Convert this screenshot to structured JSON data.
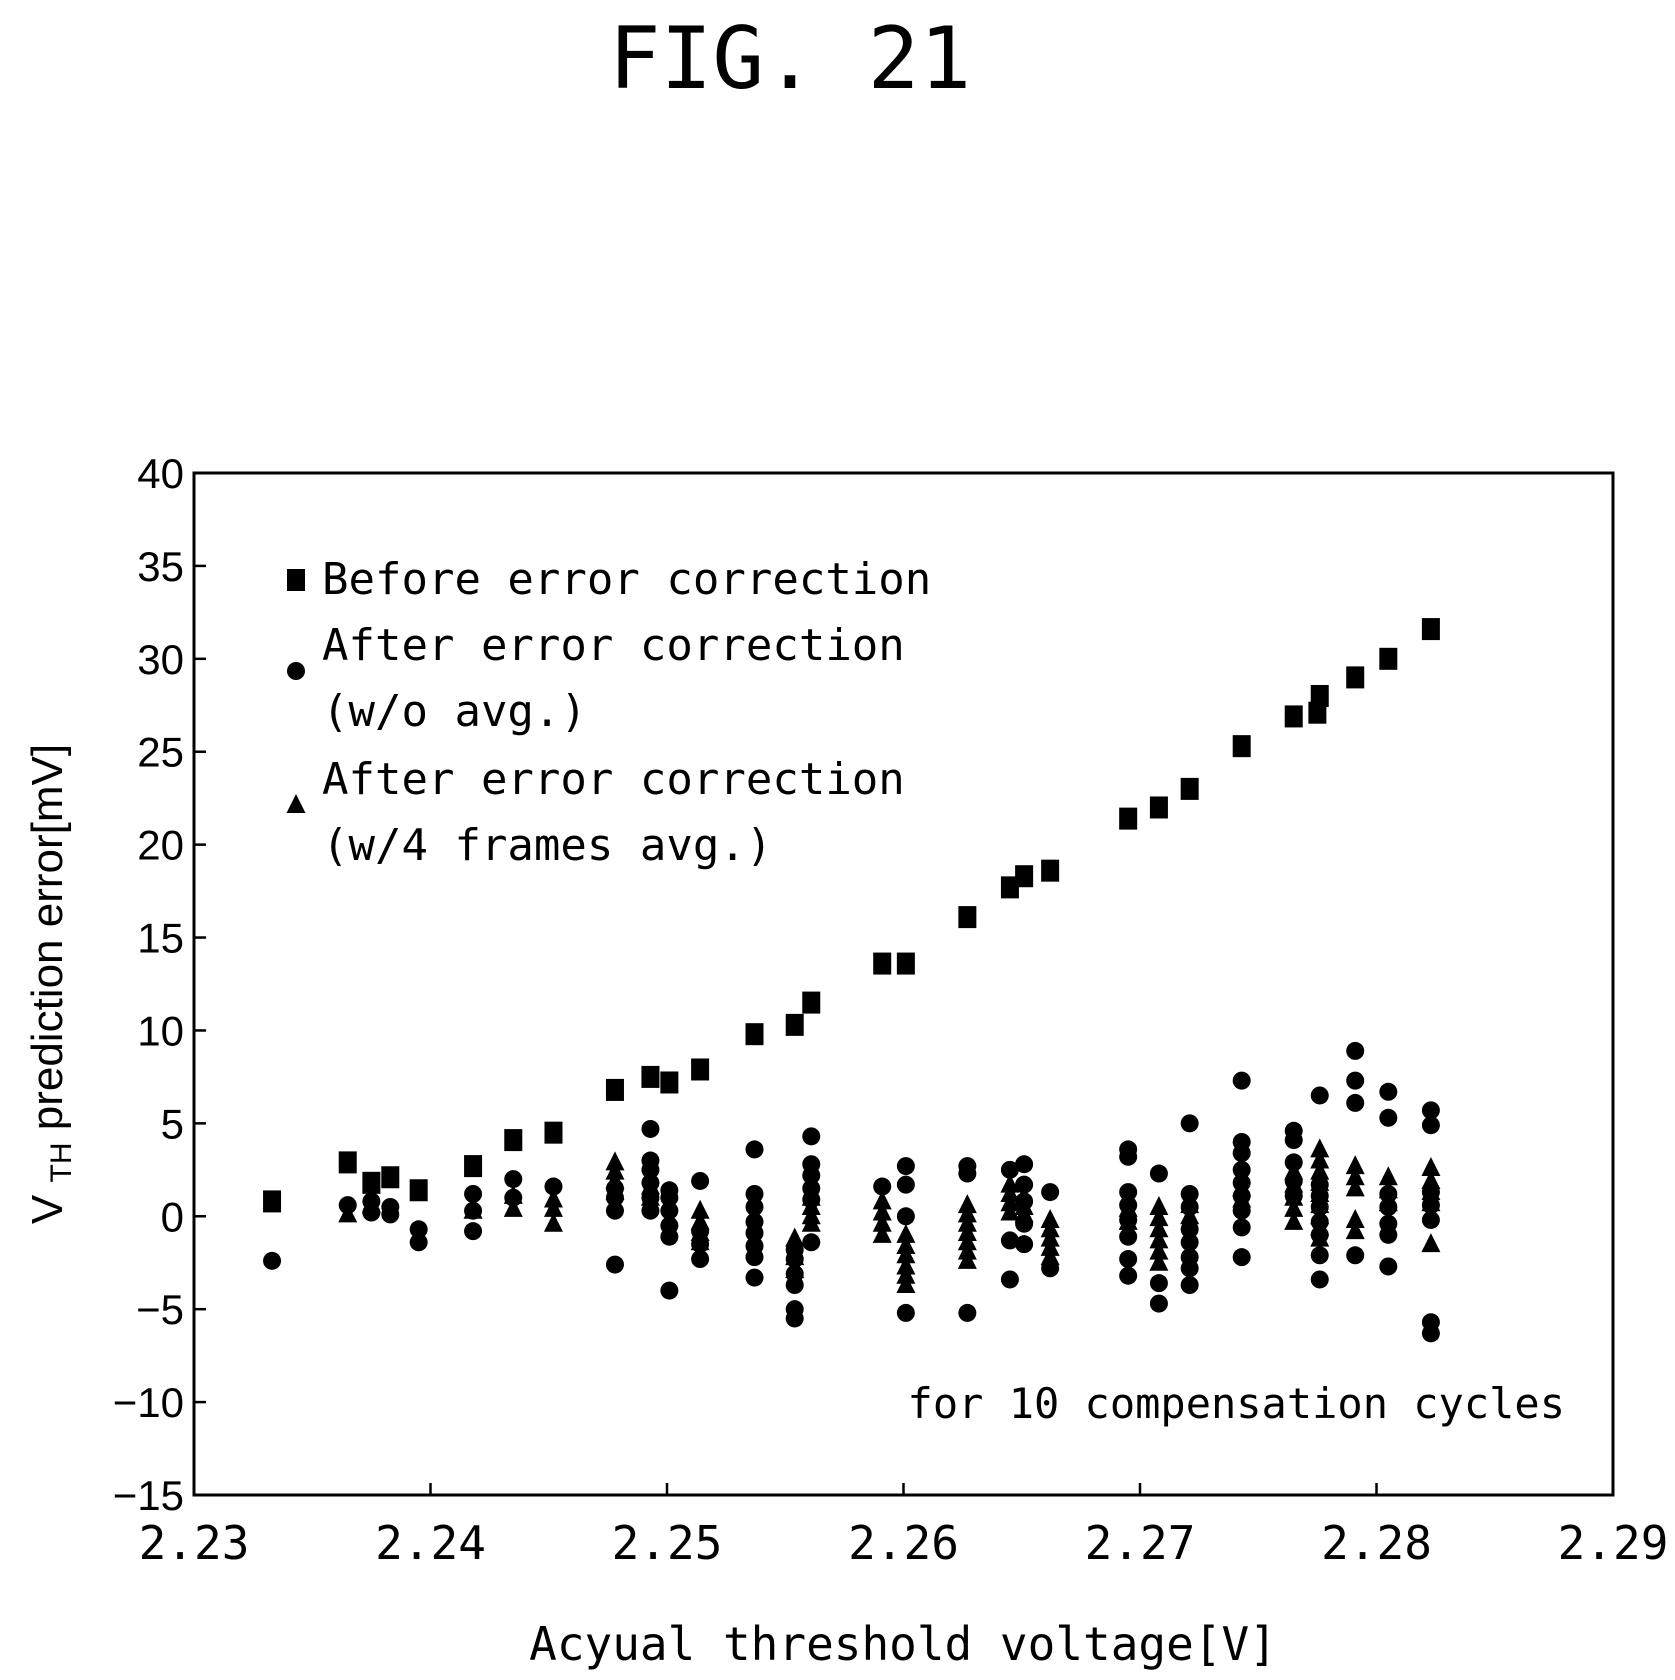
{
  "figure": {
    "label": "FIG. 21",
    "annotation": "for 10 compensation cycles"
  },
  "chart_data": {
    "type": "scatter",
    "title": "",
    "xlabel": "Acyual threshold voltage[V]",
    "ylabel": {
      "main": "V",
      "subscript": "TH",
      "rest": " prediction error[mV]"
    },
    "xlim": [
      2.23,
      2.29
    ],
    "ylim": [
      -15,
      40
    ],
    "xticks": [
      "2.23",
      "2.24",
      "2.25",
      "2.26",
      "2.27",
      "2.28",
      "2.29"
    ],
    "yticks": [
      "40",
      "35",
      "30",
      "25",
      "20",
      "15",
      "10",
      "5",
      "0",
      "−5",
      "−10",
      "−15"
    ],
    "grid": false,
    "legend_position": "top-left",
    "series": [
      {
        "name_lines": [
          "Before error correction"
        ],
        "marker": "square",
        "color": "#000000",
        "points": [
          [
            2.2333,
            0.8
          ],
          [
            2.2365,
            2.9
          ],
          [
            2.2375,
            1.8
          ],
          [
            2.2383,
            2.1
          ],
          [
            2.2395,
            1.4
          ],
          [
            2.2418,
            2.7
          ],
          [
            2.2435,
            4.1
          ],
          [
            2.2452,
            4.5
          ],
          [
            2.2478,
            6.8
          ],
          [
            2.2493,
            7.5
          ],
          [
            2.2501,
            7.2
          ],
          [
            2.2514,
            7.9
          ],
          [
            2.2537,
            9.8
          ],
          [
            2.2554,
            10.3
          ],
          [
            2.2561,
            11.5
          ],
          [
            2.2591,
            13.6
          ],
          [
            2.2601,
            13.6
          ],
          [
            2.2627,
            16.1
          ],
          [
            2.2645,
            17.7
          ],
          [
            2.2651,
            18.3
          ],
          [
            2.2662,
            18.6
          ],
          [
            2.2695,
            21.4
          ],
          [
            2.2708,
            22.0
          ],
          [
            2.2721,
            23.0
          ],
          [
            2.2743,
            25.3
          ],
          [
            2.2765,
            26.9
          ],
          [
            2.2775,
            27.1
          ],
          [
            2.2776,
            28.0
          ],
          [
            2.2791,
            29.0
          ],
          [
            2.2805,
            30.0
          ],
          [
            2.2823,
            31.6
          ]
        ]
      },
      {
        "name_lines": [
          "After error correction",
          "(w/o avg.)"
        ],
        "marker": "circle",
        "color": "#000000",
        "points": [
          [
            2.2333,
            -2.4
          ],
          [
            2.2365,
            0.6
          ],
          [
            2.2375,
            0.2
          ],
          [
            2.2375,
            0.8
          ],
          [
            2.2383,
            0.1
          ],
          [
            2.2383,
            0.5
          ],
          [
            2.2395,
            -1.4
          ],
          [
            2.2395,
            -0.7
          ],
          [
            2.2418,
            -0.8
          ],
          [
            2.2418,
            1.2
          ],
          [
            2.2418,
            0.3
          ],
          [
            2.2435,
            2.0
          ],
          [
            2.2435,
            1.0
          ],
          [
            2.2452,
            1.6
          ],
          [
            2.2478,
            -2.6
          ],
          [
            2.2478,
            0.3
          ],
          [
            2.2478,
            1.0
          ],
          [
            2.2478,
            1.5
          ],
          [
            2.2493,
            4.7
          ],
          [
            2.2493,
            3.0
          ],
          [
            2.2493,
            2.5
          ],
          [
            2.2493,
            1.8
          ],
          [
            2.2493,
            1.0
          ],
          [
            2.2493,
            0.3
          ],
          [
            2.2501,
            -4.0
          ],
          [
            2.2501,
            -1.1
          ],
          [
            2.2501,
            -0.5
          ],
          [
            2.2501,
            0.3
          ],
          [
            2.2501,
            1.0
          ],
          [
            2.2501,
            1.4
          ],
          [
            2.2514,
            1.9
          ],
          [
            2.2514,
            -0.8
          ],
          [
            2.2514,
            -1.5
          ],
          [
            2.2514,
            -2.3
          ],
          [
            2.2537,
            3.6
          ],
          [
            2.2537,
            1.2
          ],
          [
            2.2537,
            0.5
          ],
          [
            2.2537,
            -0.3
          ],
          [
            2.2537,
            -0.9
          ],
          [
            2.2537,
            -1.6
          ],
          [
            2.2537,
            -2.2
          ],
          [
            2.2537,
            -3.3
          ],
          [
            2.2554,
            -3.1
          ],
          [
            2.2554,
            -2.3
          ],
          [
            2.2554,
            -1.8
          ],
          [
            2.2554,
            -3.7
          ],
          [
            2.2554,
            -5.0
          ],
          [
            2.2554,
            -5.5
          ],
          [
            2.2561,
            4.3
          ],
          [
            2.2561,
            2.8
          ],
          [
            2.2561,
            2.2
          ],
          [
            2.2561,
            1.5
          ],
          [
            2.2561,
            0.9
          ],
          [
            2.2561,
            -1.4
          ],
          [
            2.2591,
            1.6
          ],
          [
            2.2601,
            2.7
          ],
          [
            2.2601,
            1.7
          ],
          [
            2.2601,
            0.0
          ],
          [
            2.2601,
            -5.2
          ],
          [
            2.2627,
            2.7
          ],
          [
            2.2627,
            2.3
          ],
          [
            2.2627,
            -5.2
          ],
          [
            2.2645,
            2.5
          ],
          [
            2.2645,
            -1.3
          ],
          [
            2.2645,
            -3.4
          ],
          [
            2.2651,
            2.8
          ],
          [
            2.2651,
            1.7
          ],
          [
            2.2651,
            0.8
          ],
          [
            2.2651,
            -0.4
          ],
          [
            2.2651,
            -1.5
          ],
          [
            2.2662,
            1.3
          ],
          [
            2.2662,
            -2.8
          ],
          [
            2.2695,
            3.6
          ],
          [
            2.2695,
            3.2
          ],
          [
            2.2695,
            1.3
          ],
          [
            2.2695,
            0.6
          ],
          [
            2.2695,
            -0.2
          ],
          [
            2.2695,
            -1.1
          ],
          [
            2.2695,
            -2.3
          ],
          [
            2.2695,
            -3.2
          ],
          [
            2.2708,
            2.3
          ],
          [
            2.2708,
            -3.6
          ],
          [
            2.2708,
            -4.7
          ],
          [
            2.2721,
            5.0
          ],
          [
            2.2721,
            1.2
          ],
          [
            2.2721,
            0.5
          ],
          [
            2.2721,
            -0.7
          ],
          [
            2.2721,
            -1.4
          ],
          [
            2.2721,
            -2.2
          ],
          [
            2.2721,
            -2.8
          ],
          [
            2.2721,
            -3.7
          ],
          [
            2.2743,
            7.3
          ],
          [
            2.2743,
            4.0
          ],
          [
            2.2743,
            3.4
          ],
          [
            2.2743,
            2.5
          ],
          [
            2.2743,
            1.8
          ],
          [
            2.2743,
            1.1
          ],
          [
            2.2743,
            0.3
          ],
          [
            2.2743,
            -0.6
          ],
          [
            2.2743,
            -2.2
          ],
          [
            2.2765,
            4.6
          ],
          [
            2.2765,
            4.1
          ],
          [
            2.2765,
            2.9
          ],
          [
            2.2765,
            1.9
          ],
          [
            2.2765,
            1.1
          ],
          [
            2.2776,
            6.5
          ],
          [
            2.2776,
            1.7
          ],
          [
            2.2776,
            1.1
          ],
          [
            2.2776,
            0.5
          ],
          [
            2.2776,
            -0.3
          ],
          [
            2.2776,
            -1.0
          ],
          [
            2.2776,
            -2.1
          ],
          [
            2.2776,
            -3.4
          ],
          [
            2.2791,
            8.9
          ],
          [
            2.2791,
            7.3
          ],
          [
            2.2791,
            6.1
          ],
          [
            2.2791,
            -2.1
          ],
          [
            2.2805,
            6.7
          ],
          [
            2.2805,
            5.3
          ],
          [
            2.2805,
            1.2
          ],
          [
            2.2805,
            0.5
          ],
          [
            2.2805,
            -0.4
          ],
          [
            2.2805,
            -1.0
          ],
          [
            2.2805,
            -2.7
          ],
          [
            2.2823,
            5.7
          ],
          [
            2.2823,
            4.9
          ],
          [
            2.2823,
            1.3
          ],
          [
            2.2823,
            0.6
          ],
          [
            2.2823,
            -0.2
          ],
          [
            2.2823,
            -5.7
          ],
          [
            2.2823,
            -6.3
          ]
        ]
      },
      {
        "name_lines": [
          "After error correction",
          "(w/4 frames avg.)"
        ],
        "marker": "triangle",
        "color": "#000000",
        "points": [
          [
            2.2365,
            0.1
          ],
          [
            2.2375,
            0.6
          ],
          [
            2.2418,
            0.3
          ],
          [
            2.2435,
            0.4
          ],
          [
            2.2435,
            1.1
          ],
          [
            2.2452,
            -0.4
          ],
          [
            2.2452,
            0.4
          ],
          [
            2.2452,
            0.9
          ],
          [
            2.2478,
            2.9
          ],
          [
            2.2478,
            2.4
          ],
          [
            2.2478,
            1.9
          ],
          [
            2.2478,
            1.3
          ],
          [
            2.2493,
            1.6
          ],
          [
            2.2493,
            1.0
          ],
          [
            2.2514,
            0.3
          ],
          [
            2.2514,
            -0.3
          ],
          [
            2.2514,
            -0.9
          ],
          [
            2.2514,
            -1.4
          ],
          [
            2.2554,
            -1.2
          ],
          [
            2.2554,
            -2.2
          ],
          [
            2.2554,
            -2.9
          ],
          [
            2.2561,
            1.0
          ],
          [
            2.2561,
            0.5
          ],
          [
            2.2561,
            0.0
          ],
          [
            2.2561,
            -0.4
          ],
          [
            2.2591,
            0.8
          ],
          [
            2.2591,
            0.2
          ],
          [
            2.2591,
            -0.4
          ],
          [
            2.2591,
            -1.0
          ],
          [
            2.2601,
            -1.0
          ],
          [
            2.2601,
            -1.6
          ],
          [
            2.2601,
            -2.1
          ],
          [
            2.2601,
            -2.7
          ],
          [
            2.2601,
            -3.2
          ],
          [
            2.2601,
            -3.7
          ],
          [
            2.2627,
            0.6
          ],
          [
            2.2627,
            0.1
          ],
          [
            2.2627,
            -0.4
          ],
          [
            2.2627,
            -0.9
          ],
          [
            2.2627,
            -1.4
          ],
          [
            2.2627,
            -1.9
          ],
          [
            2.2627,
            -2.4
          ],
          [
            2.2645,
            1.7
          ],
          [
            2.2645,
            1.2
          ],
          [
            2.2645,
            0.7
          ],
          [
            2.2645,
            0.2
          ],
          [
            2.2651,
            0.5
          ],
          [
            2.2651,
            0.1
          ],
          [
            2.2662,
            -0.2
          ],
          [
            2.2662,
            -0.7
          ],
          [
            2.2662,
            -1.2
          ],
          [
            2.2662,
            -1.7
          ],
          [
            2.2662,
            -2.2
          ],
          [
            2.2695,
            0.4
          ],
          [
            2.2695,
            -0.3
          ],
          [
            2.2708,
            0.5
          ],
          [
            2.2708,
            -0.1
          ],
          [
            2.2708,
            -0.7
          ],
          [
            2.2708,
            -1.3
          ],
          [
            2.2708,
            -1.9
          ],
          [
            2.2708,
            -2.5
          ],
          [
            2.2721,
            0.6
          ],
          [
            2.2721,
            0.0
          ],
          [
            2.2743,
            1.5
          ],
          [
            2.2743,
            0.9
          ],
          [
            2.2765,
            2.4
          ],
          [
            2.2765,
            1.7
          ],
          [
            2.2765,
            1.0
          ],
          [
            2.2765,
            0.4
          ],
          [
            2.2765,
            -0.3
          ],
          [
            2.2776,
            3.6
          ],
          [
            2.2776,
            3.0
          ],
          [
            2.2776,
            2.4
          ],
          [
            2.2776,
            1.8
          ],
          [
            2.2776,
            1.2
          ],
          [
            2.2776,
            0.6
          ],
          [
            2.2776,
            0.0
          ],
          [
            2.2776,
            -0.6
          ],
          [
            2.2776,
            -1.2
          ],
          [
            2.2791,
            2.7
          ],
          [
            2.2791,
            2.1
          ],
          [
            2.2791,
            1.5
          ],
          [
            2.2791,
            -0.2
          ],
          [
            2.2791,
            -0.8
          ],
          [
            2.2805,
            2.1
          ],
          [
            2.2805,
            1.4
          ],
          [
            2.2805,
            0.7
          ],
          [
            2.2823,
            2.6
          ],
          [
            2.2823,
            1.9
          ],
          [
            2.2823,
            1.3
          ],
          [
            2.2823,
            0.7
          ],
          [
            2.2823,
            -1.5
          ]
        ]
      }
    ]
  }
}
